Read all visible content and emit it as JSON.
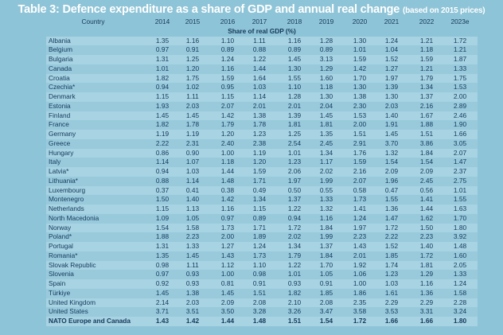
{
  "header": {
    "title": "Table 3: Defence expenditure as a share of GDP and annual real change",
    "subtitle": "(based on 2015 prices)"
  },
  "table": {
    "columns": [
      "Country",
      "2014",
      "2015",
      "2016",
      "2017",
      "2018",
      "2019",
      "2020",
      "2021",
      "2022",
      "2023e"
    ],
    "subheader": "Share of real GDP (%)",
    "rows": [
      [
        "Albania",
        "1.35",
        "1.16",
        "1.10",
        "1.11",
        "1.16",
        "1.28",
        "1.30",
        "1.24",
        "1.21",
        "1.72"
      ],
      [
        "Belgium",
        "0.97",
        "0.91",
        "0.89",
        "0.88",
        "0.89",
        "0.89",
        "1.01",
        "1.04",
        "1.18",
        "1.21"
      ],
      [
        "Bulgaria",
        "1.31",
        "1.25",
        "1.24",
        "1.22",
        "1.45",
        "3.13",
        "1.59",
        "1.52",
        "1.59",
        "1.87"
      ],
      [
        "Canada",
        "1.01",
        "1.20",
        "1.16",
        "1.44",
        "1.30",
        "1.29",
        "1.42",
        "1.27",
        "1.21",
        "1.33"
      ],
      [
        "Croatia",
        "1.82",
        "1.75",
        "1.59",
        "1.64",
        "1.55",
        "1.60",
        "1.70",
        "1.97",
        "1.79",
        "1.75"
      ],
      [
        "Czechia*",
        "0.94",
        "1.02",
        "0.95",
        "1.03",
        "1.10",
        "1.18",
        "1.30",
        "1.39",
        "1.34",
        "1.53"
      ],
      [
        "Denmark",
        "1.15",
        "1.11",
        "1.15",
        "1.14",
        "1.28",
        "1.30",
        "1.38",
        "1.30",
        "1.37",
        "2.00"
      ],
      [
        "Estonia",
        "1.93",
        "2.03",
        "2.07",
        "2.01",
        "2.01",
        "2.04",
        "2.30",
        "2.03",
        "2.16",
        "2.89"
      ],
      [
        "Finland",
        "1.45",
        "1.45",
        "1.42",
        "1.38",
        "1.39",
        "1.45",
        "1.53",
        "1.40",
        "1.67",
        "2.46"
      ],
      [
        "France",
        "1.82",
        "1.78",
        "1.79",
        "1.78",
        "1.81",
        "1.81",
        "2.00",
        "1.91",
        "1.88",
        "1.90"
      ],
      [
        "Germany",
        "1.19",
        "1.19",
        "1.20",
        "1.23",
        "1.25",
        "1.35",
        "1.51",
        "1.45",
        "1.51",
        "1.66"
      ],
      [
        "Greece",
        "2.22",
        "2.31",
        "2.40",
        "2.38",
        "2.54",
        "2.45",
        "2.91",
        "3.70",
        "3.86",
        "3.05"
      ],
      [
        "Hungary",
        "0.86",
        "0.90",
        "1.00",
        "1.19",
        "1.01",
        "1.34",
        "1.76",
        "1.32",
        "1.84",
        "2.07"
      ],
      [
        "Italy",
        "1.14",
        "1.07",
        "1.18",
        "1.20",
        "1.23",
        "1.17",
        "1.59",
        "1.54",
        "1.54",
        "1.47"
      ],
      [
        "Latvia*",
        "0.94",
        "1.03",
        "1.44",
        "1.59",
        "2.06",
        "2.02",
        "2.16",
        "2.09",
        "2.09",
        "2.37"
      ],
      [
        "Lithuania*",
        "0.88",
        "1.14",
        "1.48",
        "1.71",
        "1.97",
        "1.99",
        "2.07",
        "1.96",
        "2.45",
        "2.75"
      ],
      [
        "Luxembourg",
        "0.37",
        "0.41",
        "0.38",
        "0.49",
        "0.50",
        "0.55",
        "0.58",
        "0.47",
        "0.56",
        "1.01"
      ],
      [
        "Montenegro",
        "1.50",
        "1.40",
        "1.42",
        "1.34",
        "1.37",
        "1.33",
        "1.73",
        "1.55",
        "1.41",
        "1.55"
      ],
      [
        "Netherlands",
        "1.15",
        "1.13",
        "1.16",
        "1.15",
        "1.22",
        "1.32",
        "1.41",
        "1.36",
        "1.44",
        "1.63"
      ],
      [
        "North Macedonia",
        "1.09",
        "1.05",
        "0.97",
        "0.89",
        "0.94",
        "1.16",
        "1.24",
        "1.47",
        "1.62",
        "1.70"
      ],
      [
        "Norway",
        "1.54",
        "1.58",
        "1.73",
        "1.71",
        "1.72",
        "1.84",
        "1.97",
        "1.72",
        "1.50",
        "1.80"
      ],
      [
        "Poland*",
        "1.88",
        "2.23",
        "2.00",
        "1.89",
        "2.02",
        "1.99",
        "2.23",
        "2.22",
        "2.23",
        "3.92"
      ],
      [
        "Portugal",
        "1.31",
        "1.33",
        "1.27",
        "1.24",
        "1.34",
        "1.37",
        "1.43",
        "1.52",
        "1.40",
        "1.48"
      ],
      [
        "Romania*",
        "1.35",
        "1.45",
        "1.43",
        "1.73",
        "1.79",
        "1.84",
        "2.01",
        "1.85",
        "1.72",
        "1.60"
      ],
      [
        "Slovak Republic",
        "0.98",
        "1.11",
        "1.12",
        "1.10",
        "1.22",
        "1.70",
        "1.92",
        "1.74",
        "1.81",
        "2.05"
      ],
      [
        "Slovenia",
        "0.97",
        "0.93",
        "1.00",
        "0.98",
        "1.01",
        "1.05",
        "1.06",
        "1.23",
        "1.29",
        "1.33"
      ],
      [
        "Spain",
        "0.92",
        "0.93",
        "0.81",
        "0.91",
        "0.93",
        "0.91",
        "1.00",
        "1.03",
        "1.16",
        "1.24"
      ],
      [
        "Türkiye",
        "1.45",
        "1.38",
        "1.45",
        "1.51",
        "1.82",
        "1.85",
        "1.86",
        "1.61",
        "1.36",
        "1.58"
      ],
      [
        "United Kingdom",
        "2.14",
        "2.03",
        "2.09",
        "2.08",
        "2.10",
        "2.08",
        "2.35",
        "2.29",
        "2.29",
        "2.28"
      ],
      [
        "United States",
        "3.71",
        "3.51",
        "3.50",
        "3.28",
        "3.26",
        "3.47",
        "3.58",
        "3.53",
        "3.31",
        "3.24"
      ],
      [
        "NATO Europe and Canada",
        "1.43",
        "1.42",
        "1.44",
        "1.48",
        "1.51",
        "1.54",
        "1.72",
        "1.66",
        "1.66",
        "1.80"
      ]
    ]
  }
}
